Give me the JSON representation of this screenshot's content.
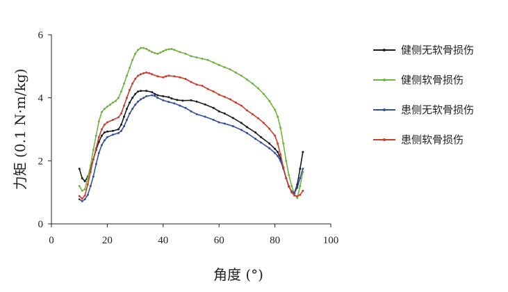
{
  "chart_data": {
    "type": "line",
    "xlabel": "角度 (°)",
    "ylabel": "力矩 (0.1 N·m/kg)",
    "xlim": [
      0,
      100
    ],
    "ylim": [
      0,
      6
    ],
    "xticks": [
      "0",
      "20",
      "40",
      "60",
      "80",
      "100"
    ],
    "yticks": [
      "0",
      "2",
      "4",
      "6"
    ],
    "grid": false,
    "legend_position": "right",
    "series": [
      {
        "name": "健侧无软骨损伤",
        "color": "#1a1a1a",
        "points": [
          [
            10,
            1.75
          ],
          [
            11,
            1.45
          ],
          [
            12,
            1.35
          ],
          [
            13,
            1.5
          ],
          [
            14,
            1.75
          ],
          [
            15,
            2.05
          ],
          [
            16,
            2.35
          ],
          [
            17,
            2.6
          ],
          [
            18,
            2.8
          ],
          [
            19,
            2.9
          ],
          [
            20,
            2.93
          ],
          [
            22,
            2.95
          ],
          [
            24,
            3.0
          ],
          [
            25,
            3.15
          ],
          [
            26,
            3.4
          ],
          [
            27,
            3.65
          ],
          [
            28,
            3.85
          ],
          [
            29,
            4.0
          ],
          [
            30,
            4.12
          ],
          [
            31,
            4.2
          ],
          [
            32,
            4.22
          ],
          [
            34,
            4.22
          ],
          [
            36,
            4.18
          ],
          [
            37,
            4.12
          ],
          [
            38,
            4.08
          ],
          [
            40,
            4.05
          ],
          [
            42,
            4.02
          ],
          [
            43,
            3.98
          ],
          [
            45,
            3.93
          ],
          [
            47,
            3.91
          ],
          [
            50,
            3.92
          ],
          [
            52,
            3.88
          ],
          [
            55,
            3.79
          ],
          [
            58,
            3.68
          ],
          [
            60,
            3.57
          ],
          [
            62,
            3.5
          ],
          [
            65,
            3.36
          ],
          [
            68,
            3.2
          ],
          [
            70,
            3.07
          ],
          [
            73,
            2.9
          ],
          [
            75,
            2.75
          ],
          [
            78,
            2.55
          ],
          [
            80,
            2.38
          ],
          [
            81,
            2.28
          ],
          [
            82,
            2.08
          ],
          [
            83,
            1.78
          ],
          [
            84,
            1.45
          ],
          [
            85,
            1.18
          ],
          [
            86,
            1.03
          ],
          [
            87,
            0.98
          ],
          [
            88,
            1.25
          ],
          [
            89,
            1.75
          ],
          [
            90,
            2.28
          ]
        ]
      },
      {
        "name": "健侧软骨损伤",
        "color": "#6db33f",
        "points": [
          [
            10,
            1.2
          ],
          [
            11,
            1.05
          ],
          [
            12,
            1.1
          ],
          [
            13,
            1.45
          ],
          [
            14,
            1.85
          ],
          [
            15,
            2.35
          ],
          [
            16,
            2.8
          ],
          [
            17,
            3.25
          ],
          [
            18,
            3.55
          ],
          [
            19,
            3.65
          ],
          [
            20,
            3.72
          ],
          [
            21,
            3.78
          ],
          [
            22,
            3.85
          ],
          [
            23,
            3.9
          ],
          [
            24,
            4.0
          ],
          [
            25,
            4.2
          ],
          [
            26,
            4.45
          ],
          [
            27,
            4.7
          ],
          [
            28,
            4.95
          ],
          [
            29,
            5.2
          ],
          [
            30,
            5.4
          ],
          [
            31,
            5.52
          ],
          [
            32,
            5.58
          ],
          [
            33,
            5.58
          ],
          [
            34,
            5.55
          ],
          [
            35,
            5.5
          ],
          [
            36,
            5.45
          ],
          [
            37,
            5.42
          ],
          [
            38,
            5.4
          ],
          [
            39,
            5.43
          ],
          [
            40,
            5.48
          ],
          [
            41,
            5.52
          ],
          [
            42,
            5.54
          ],
          [
            43,
            5.55
          ],
          [
            44,
            5.52
          ],
          [
            46,
            5.45
          ],
          [
            48,
            5.4
          ],
          [
            50,
            5.32
          ],
          [
            52,
            5.28
          ],
          [
            54,
            5.24
          ],
          [
            56,
            5.2
          ],
          [
            58,
            5.12
          ],
          [
            60,
            5.04
          ],
          [
            62,
            4.97
          ],
          [
            64,
            4.9
          ],
          [
            66,
            4.8
          ],
          [
            68,
            4.7
          ],
          [
            70,
            4.58
          ],
          [
            72,
            4.45
          ],
          [
            74,
            4.3
          ],
          [
            76,
            4.12
          ],
          [
            78,
            3.9
          ],
          [
            80,
            3.62
          ],
          [
            81,
            3.4
          ],
          [
            82,
            3.05
          ],
          [
            83,
            2.55
          ],
          [
            84,
            2.0
          ],
          [
            85,
            1.55
          ],
          [
            86,
            1.2
          ],
          [
            87,
            0.95
          ],
          [
            88,
            0.82
          ],
          [
            89,
            1.2
          ],
          [
            90,
            1.65
          ]
        ]
      },
      {
        "name": "患侧无软骨损伤",
        "color": "#2f4fa3",
        "points": [
          [
            10,
            0.78
          ],
          [
            11,
            0.72
          ],
          [
            12,
            0.78
          ],
          [
            13,
            0.92
          ],
          [
            14,
            1.2
          ],
          [
            15,
            1.5
          ],
          [
            16,
            1.9
          ],
          [
            17,
            2.25
          ],
          [
            18,
            2.5
          ],
          [
            19,
            2.65
          ],
          [
            20,
            2.75
          ],
          [
            22,
            2.83
          ],
          [
            24,
            2.88
          ],
          [
            25,
            2.95
          ],
          [
            26,
            3.1
          ],
          [
            27,
            3.3
          ],
          [
            28,
            3.5
          ],
          [
            29,
            3.65
          ],
          [
            30,
            3.78
          ],
          [
            31,
            3.88
          ],
          [
            32,
            3.95
          ],
          [
            33,
            4.0
          ],
          [
            34,
            4.05
          ],
          [
            36,
            4.08
          ],
          [
            37,
            4.06
          ],
          [
            38,
            4.0
          ],
          [
            40,
            3.92
          ],
          [
            42,
            3.87
          ],
          [
            44,
            3.82
          ],
          [
            46,
            3.75
          ],
          [
            48,
            3.68
          ],
          [
            50,
            3.57
          ],
          [
            52,
            3.48
          ],
          [
            55,
            3.4
          ],
          [
            58,
            3.3
          ],
          [
            60,
            3.22
          ],
          [
            62,
            3.18
          ],
          [
            65,
            3.1
          ],
          [
            68,
            2.98
          ],
          [
            70,
            2.88
          ],
          [
            73,
            2.7
          ],
          [
            75,
            2.58
          ],
          [
            78,
            2.4
          ],
          [
            80,
            2.25
          ],
          [
            81,
            2.15
          ],
          [
            82,
            2.0
          ],
          [
            83,
            1.75
          ],
          [
            84,
            1.45
          ],
          [
            85,
            1.18
          ],
          [
            86,
            1.03
          ],
          [
            87,
            0.98
          ],
          [
            88,
            1.15
          ],
          [
            89,
            1.45
          ],
          [
            90,
            1.75
          ]
        ]
      },
      {
        "name": "患侧软骨损伤",
        "color": "#cc3c2a",
        "points": [
          [
            10,
            0.88
          ],
          [
            11,
            0.8
          ],
          [
            12,
            0.9
          ],
          [
            13,
            1.25
          ],
          [
            14,
            1.65
          ],
          [
            15,
            2.05
          ],
          [
            16,
            2.4
          ],
          [
            17,
            2.75
          ],
          [
            18,
            3.0
          ],
          [
            19,
            3.15
          ],
          [
            20,
            3.22
          ],
          [
            22,
            3.3
          ],
          [
            24,
            3.38
          ],
          [
            25,
            3.5
          ],
          [
            26,
            3.75
          ],
          [
            27,
            4.0
          ],
          [
            28,
            4.25
          ],
          [
            29,
            4.45
          ],
          [
            30,
            4.6
          ],
          [
            31,
            4.7
          ],
          [
            32,
            4.75
          ],
          [
            33,
            4.78
          ],
          [
            34,
            4.8
          ],
          [
            35,
            4.78
          ],
          [
            36,
            4.75
          ],
          [
            38,
            4.68
          ],
          [
            40,
            4.65
          ],
          [
            41,
            4.68
          ],
          [
            42,
            4.7
          ],
          [
            44,
            4.68
          ],
          [
            46,
            4.65
          ],
          [
            48,
            4.6
          ],
          [
            50,
            4.5
          ],
          [
            52,
            4.42
          ],
          [
            54,
            4.38
          ],
          [
            56,
            4.28
          ],
          [
            58,
            4.2
          ],
          [
            60,
            4.1
          ],
          [
            62,
            4.03
          ],
          [
            64,
            3.95
          ],
          [
            66,
            3.85
          ],
          [
            68,
            3.75
          ],
          [
            70,
            3.6
          ],
          [
            72,
            3.48
          ],
          [
            74,
            3.35
          ],
          [
            76,
            3.2
          ],
          [
            78,
            3.02
          ],
          [
            80,
            2.8
          ],
          [
            81,
            2.55
          ],
          [
            82,
            2.2
          ],
          [
            83,
            1.8
          ],
          [
            84,
            1.45
          ],
          [
            85,
            1.2
          ],
          [
            86,
            1.0
          ],
          [
            87,
            0.9
          ],
          [
            88,
            0.88
          ],
          [
            89,
            0.92
          ],
          [
            90,
            1.05
          ]
        ]
      }
    ]
  }
}
